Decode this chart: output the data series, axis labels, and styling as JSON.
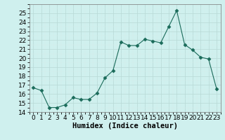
{
  "x": [
    0,
    1,
    2,
    3,
    4,
    5,
    6,
    7,
    8,
    9,
    10,
    11,
    12,
    13,
    14,
    15,
    16,
    17,
    18,
    19,
    20,
    21,
    22,
    23
  ],
  "y": [
    16.7,
    16.4,
    14.5,
    14.5,
    14.8,
    15.6,
    15.4,
    15.4,
    16.1,
    17.8,
    18.6,
    21.8,
    21.4,
    21.4,
    22.1,
    21.9,
    21.7,
    23.5,
    25.3,
    21.5,
    20.9,
    20.1,
    19.9,
    16.6
  ],
  "xlabel": "Humidex (Indice chaleur)",
  "ylim": [
    14,
    26
  ],
  "xlim": [
    -0.5,
    23.5
  ],
  "yticks": [
    14,
    15,
    16,
    17,
    18,
    19,
    20,
    21,
    22,
    23,
    24,
    25
  ],
  "xticks": [
    0,
    1,
    2,
    3,
    4,
    5,
    6,
    7,
    8,
    9,
    10,
    11,
    12,
    13,
    14,
    15,
    16,
    17,
    18,
    19,
    20,
    21,
    22,
    23
  ],
  "line_color": "#1a6b5a",
  "marker": "D",
  "marker_size": 2.5,
  "bg_color": "#cff0ee",
  "grid_major_color": "#b8d8d5",
  "grid_minor_color": "#d8eceb",
  "tick_label_fontsize": 6.5,
  "xlabel_fontsize": 7.5
}
